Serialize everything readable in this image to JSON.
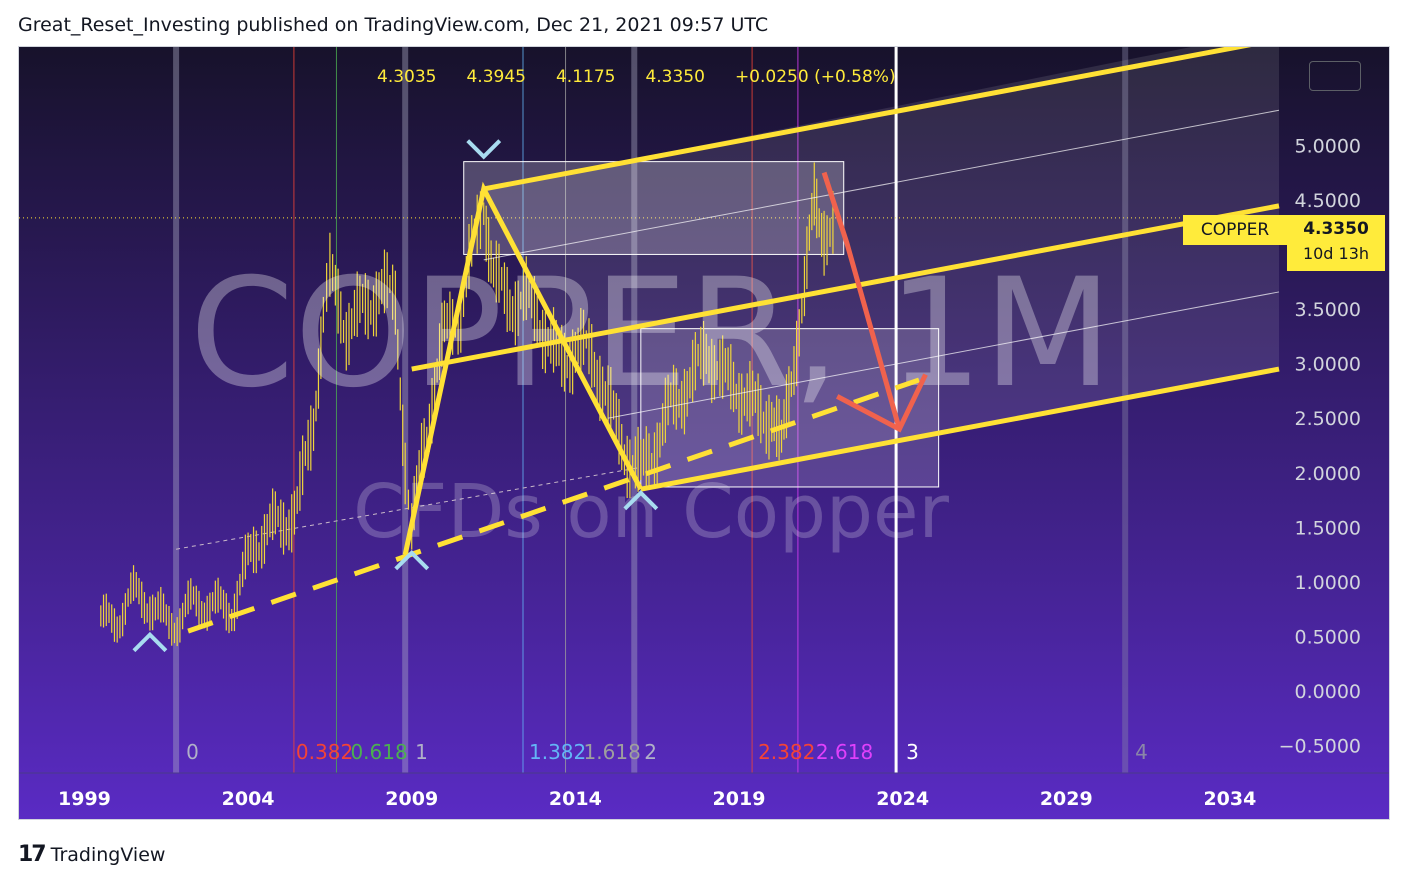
{
  "header": {
    "published_line": "Great_Reset_Investing published on TradingView.com, Dec 21, 2021 09:57 UTC"
  },
  "ohlc": {
    "open": "4.3035",
    "high": "4.3945",
    "low": "4.1175",
    "close": "4.3350",
    "change": "+0.0250 (+0.58%)"
  },
  "watermark": {
    "symbol_line": "COPPER, 1M",
    "description_line": "CFDs on Copper"
  },
  "price_label": {
    "symbol": "COPPER",
    "price": "4.3350",
    "countdown": "10d 13h"
  },
  "footer": {
    "brand": "TradingView",
    "logo_text": "17"
  },
  "colors": {
    "background_top": "#17122b",
    "background_bottom": "#5a2bc4",
    "channel": "#ffe135",
    "arrow": "#f0624d",
    "chevron": "#a8dcf0",
    "price_tag": "#ffeb3b"
  },
  "chart_data": {
    "type": "line",
    "title": "",
    "xlabel": "",
    "ylabel": "",
    "x_ticks": [
      "1999",
      "2004",
      "2009",
      "2014",
      "2019",
      "2024",
      "2029",
      "2034"
    ],
    "y_ticks": [
      "5.0000",
      "4.5000",
      "4.0000",
      "3.5000",
      "3.0000",
      "2.5000",
      "2.0000",
      "1.5000",
      "1.0000",
      "0.5000",
      "0.0000",
      "−0.5000"
    ],
    "y_tick_values": [
      5.0,
      4.5,
      4.0,
      3.5,
      3.0,
      2.5,
      2.0,
      1.5,
      1.0,
      0.5,
      0.0,
      -0.5
    ],
    "xlim": [
      1997.0,
      2035.5
    ],
    "ylim": [
      -0.75,
      5.9
    ],
    "series": [
      {
        "values": [
          [
            1999.5,
            0.72
          ],
          [
            2000.0,
            0.66
          ],
          [
            2000.5,
            0.78
          ],
          [
            2001.0,
            0.82
          ],
          [
            2001.5,
            0.72
          ],
          [
            2002.0,
            0.7
          ],
          [
            2002.5,
            0.72
          ],
          [
            2003.0,
            0.76
          ],
          [
            2003.5,
            0.86
          ],
          [
            2004.0,
            1.2
          ],
          [
            2004.5,
            1.38
          ],
          [
            2005.0,
            1.5
          ],
          [
            2005.5,
            1.8
          ],
          [
            2006.0,
            2.5
          ],
          [
            2006.3,
            3.4
          ],
          [
            2006.5,
            3.7
          ],
          [
            2007.0,
            3.3
          ],
          [
            2007.5,
            3.6
          ],
          [
            2008.0,
            3.7
          ],
          [
            2008.5,
            3.5
          ],
          [
            2008.8,
            2.0
          ],
          [
            2009.0,
            1.4
          ],
          [
            2009.3,
            2.2
          ],
          [
            2009.7,
            2.9
          ],
          [
            2010.0,
            3.3
          ],
          [
            2010.5,
            3.4
          ],
          [
            2011.0,
            4.2
          ],
          [
            2011.2,
            4.5
          ],
          [
            2011.5,
            3.9
          ],
          [
            2012.0,
            3.6
          ],
          [
            2012.5,
            3.5
          ],
          [
            2013.0,
            3.3
          ],
          [
            2013.5,
            3.1
          ],
          [
            2014.0,
            3.2
          ],
          [
            2014.5,
            3.0
          ],
          [
            2015.0,
            2.6
          ],
          [
            2015.5,
            2.3
          ],
          [
            2016.0,
            2.05
          ],
          [
            2016.5,
            2.2
          ],
          [
            2017.0,
            2.6
          ],
          [
            2017.5,
            2.9
          ],
          [
            2018.0,
            3.2
          ],
          [
            2018.5,
            2.8
          ],
          [
            2019.0,
            2.7
          ],
          [
            2019.5,
            2.65
          ],
          [
            2020.0,
            2.6
          ],
          [
            2020.3,
            2.2
          ],
          [
            2020.6,
            2.8
          ],
          [
            2021.0,
            3.6
          ],
          [
            2021.3,
            4.5
          ],
          [
            2021.6,
            4.3
          ],
          [
            2021.96,
            4.335
          ]
        ]
      }
    ],
    "last_price": 4.335,
    "fib_time_labels": [
      "0",
      "0.382",
      "0.618",
      "1",
      "1.382",
      "1.618",
      "2",
      "2.382",
      "2.618",
      "3",
      "4"
    ],
    "fib_time_colors": [
      "#b0b0c8",
      "#f44336",
      "#4caf50",
      "#b0b0c8",
      "#64b5f6",
      "#9e9e9e",
      "#b0b0c8",
      "#f44336",
      "#e040fb",
      "#ffffff",
      "#8a86a8"
    ]
  }
}
